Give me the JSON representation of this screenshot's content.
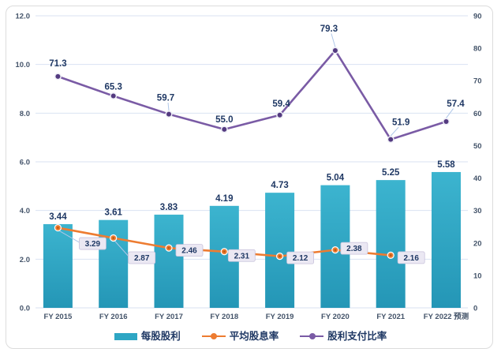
{
  "chart_data": {
    "type": "combo",
    "categories": [
      "FY 2015",
      "FY 2016",
      "FY 2017",
      "FY 2018",
      "FY 2019",
      "FY 2020",
      "FY 2021",
      "FY 2022 预测"
    ],
    "series": [
      {
        "name": "每股股利",
        "chart_type": "bar",
        "axis": "left",
        "color": "#2EA6C4",
        "values": [
          3.44,
          3.61,
          3.83,
          4.19,
          4.73,
          5.04,
          5.25,
          5.58
        ],
        "labels": [
          "3.44",
          "3.61",
          "3.83",
          "4.19",
          "4.73",
          "5.04",
          "5.25",
          "5.58"
        ]
      },
      {
        "name": "平均股息率",
        "chart_type": "line",
        "axis": "left",
        "color": "#ED7C31",
        "values": [
          3.29,
          2.87,
          2.46,
          2.31,
          2.12,
          2.38,
          2.16
        ],
        "labels": [
          "3.29",
          "2.87",
          "2.46",
          "2.31",
          "2.12",
          "2.38",
          "2.16"
        ],
        "label_style": "boxed-callout"
      },
      {
        "name": "股利支付比率",
        "chart_type": "line",
        "axis": "right",
        "color": "#7A5BA5",
        "values": [
          71.3,
          65.3,
          59.7,
          55.0,
          59.4,
          79.3,
          51.9,
          57.4
        ],
        "labels": [
          "71.3",
          "65.3",
          "59.7",
          "55.0",
          "59.4",
          "79.3",
          "51.9",
          "57.4"
        ]
      }
    ],
    "left_axis": {
      "min": 0,
      "max": 12,
      "tick_step": 2,
      "tick_labels": [
        "12.0",
        "10.0",
        "8.0",
        "6.0",
        "4.0",
        "2.0",
        "0.0"
      ]
    },
    "right_axis": {
      "min": 0,
      "max": 90,
      "tick_step": 10,
      "tick_labels": [
        "90",
        "80",
        "70",
        "60",
        "50",
        "40",
        "30",
        "20",
        "10",
        "0"
      ]
    },
    "grid": true,
    "legend_position": "bottom"
  },
  "colors": {
    "bar_top": "#3CB4CF",
    "bar_bottom": "#2496B6",
    "bar_legend": "#2EA6C4",
    "orange_line": "#ED7C31",
    "orange_marker_core": "#C05A11",
    "purple_line": "#7A5BA5",
    "purple_marker_core": "#533A80",
    "data_label": "#1F3864",
    "axis_text": "#44546A",
    "gridline": "#D9E2F2",
    "leader_line": "#AFC7E8",
    "callout_bg": "#EBE8F3",
    "callout_border": "#C8C2DB",
    "frame_border": "#DCDCDC",
    "background": "#FFFFFF"
  }
}
